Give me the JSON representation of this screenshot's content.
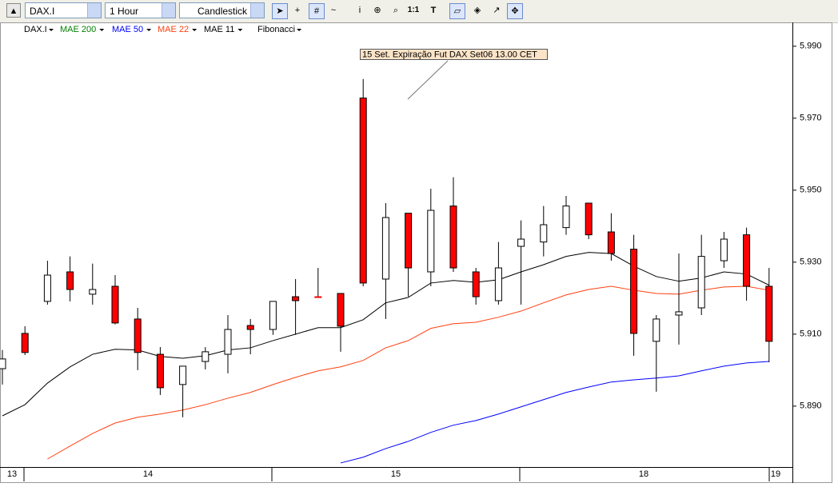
{
  "toolbar": {
    "symbol": "DAX.I",
    "interval": "1 Hour",
    "chart_style": "Candlestick",
    "zoom_ratio": "1:1"
  },
  "chart_data": {
    "type": "candlestick",
    "symbol": "DAX.I",
    "tools": "Fibonacci",
    "annotation": "15 Set. Expiração Fut DAX Set06 13.00 CET",
    "x_labels": [
      "13",
      "14",
      "15",
      "18",
      "19"
    ],
    "open": [
      5900.4,
      5910.2,
      5919.1,
      5927.3,
      5921.1,
      5923.3,
      5914.2,
      5904.4,
      5896,
      5902.4,
      5904.4,
      5912.4,
      5911.3,
      5920.4,
      5920.4,
      5921.3,
      5975.6,
      5925.3,
      5943.6,
      5927.3,
      5945.6,
      5927.3,
      5919.3,
      5934.4,
      5935.6,
      5939.6,
      5946.4,
      5938.4,
      5933.6,
      5908,
      5915.3,
      5917.3,
      5930.4,
      5937.6,
      5923.3
    ],
    "high": [
      5905.6,
      5912.2,
      5930.4,
      5931.6,
      5929.6,
      5926.4,
      5917.3,
      5906.4,
      5901.1,
      5906.4,
      5915.3,
      5914.2,
      5919.1,
      5925.3,
      5928.4,
      5921.3,
      5980.9,
      5946.4,
      5943.6,
      5950.4,
      5953.6,
      5928.4,
      5935.6,
      5941.6,
      5945.6,
      5948.4,
      5946.4,
      5943.6,
      5937.6,
      5915.3,
      5932.4,
      5937.6,
      5938.4,
      5939.6,
      5928.4
    ],
    "low": [
      5896,
      5904.2,
      5918.2,
      5919.1,
      5918.2,
      5912.7,
      5900,
      5893.1,
      5886.9,
      5900.2,
      5899.1,
      5904.4,
      5909.8,
      5909.8,
      5920.4,
      5905.1,
      5923.3,
      5914.2,
      5920.4,
      5923.3,
      5927.3,
      5918.2,
      5918.2,
      5918.2,
      5931.6,
      5937.6,
      5936.4,
      5930.4,
      5904,
      5894,
      5907.1,
      5915.3,
      5928.4,
      5919.3,
      5902.2
    ],
    "close": [
      5903.1,
      5904.9,
      5926.4,
      5922.4,
      5922.4,
      5913.1,
      5904.9,
      5895.1,
      5901.1,
      5905.1,
      5911.3,
      5911.3,
      5919.1,
      5919.3,
      5920.4,
      5912.2,
      5924.2,
      5942.4,
      5928.4,
      5944.4,
      5928.4,
      5920.4,
      5928.4,
      5936.4,
      5940.4,
      5945.6,
      5937.6,
      5932.4,
      5910.2,
      5914.2,
      5916.2,
      5931.6,
      5936.4,
      5923.3,
      5908
    ],
    "up_color": "#ffffff",
    "down_color": "#ff0000",
    "series": [
      {
        "name": "MAE 200",
        "color": "#008000"
      },
      {
        "name": "MAE 50",
        "color": "#0000ff",
        "values": [
          null,
          null,
          null,
          null,
          null,
          null,
          null,
          null,
          null,
          null,
          null,
          null,
          null,
          null,
          null,
          5874.2,
          5875.8,
          5878.2,
          5880.2,
          5882.7,
          5884.7,
          5886.0,
          5887.8,
          5889.8,
          5891.8,
          5893.8,
          5895.3,
          5896.7,
          5897.3,
          5897.8,
          5898.4,
          5899.8,
          5901.1,
          5902.0,
          5902.4
        ]
      },
      {
        "name": "MAE 22",
        "color": "#ff4010",
        "values": [
          null,
          null,
          5875.3,
          5878.9,
          5882.4,
          5885.3,
          5886.9,
          5887.8,
          5888.9,
          5890.4,
          5892.2,
          5893.8,
          5896.0,
          5898.0,
          5899.8,
          5900.9,
          5902.7,
          5906.2,
          5908.2,
          5911.6,
          5912.9,
          5913.3,
          5914.7,
          5916.4,
          5918.7,
          5920.9,
          5922.4,
          5923.3,
          5922.2,
          5921.3,
          5921.1,
          5922.2,
          5923.1,
          5923.3,
          5922.2
        ]
      },
      {
        "name": "MAE 11",
        "color": "#000000",
        "values": [
          5887.3,
          5890.4,
          5896.4,
          5900.9,
          5904.4,
          5905.8,
          5905.6,
          5903.8,
          5903.3,
          5904.0,
          5905.6,
          5906.2,
          5908.2,
          5910.0,
          5911.8,
          5911.8,
          5914.0,
          5918.7,
          5920.2,
          5924.2,
          5924.9,
          5924.4,
          5925.1,
          5927.3,
          5929.3,
          5931.6,
          5932.7,
          5932.4,
          5928.9,
          5926.0,
          5924.7,
          5925.6,
          5927.3,
          5926.7,
          5923.6
        ]
      }
    ],
    "ylim": [
      5873.3,
      5996.4
    ],
    "yticks": [
      {
        "value": 5890,
        "label": "5.890"
      },
      {
        "value": 5910,
        "label": "5.910"
      },
      {
        "value": 5930,
        "label": "5.930"
      },
      {
        "value": 5950,
        "label": "5.950"
      },
      {
        "value": 5970,
        "label": "5.970"
      },
      {
        "value": 5990,
        "label": "5.990"
      }
    ]
  }
}
